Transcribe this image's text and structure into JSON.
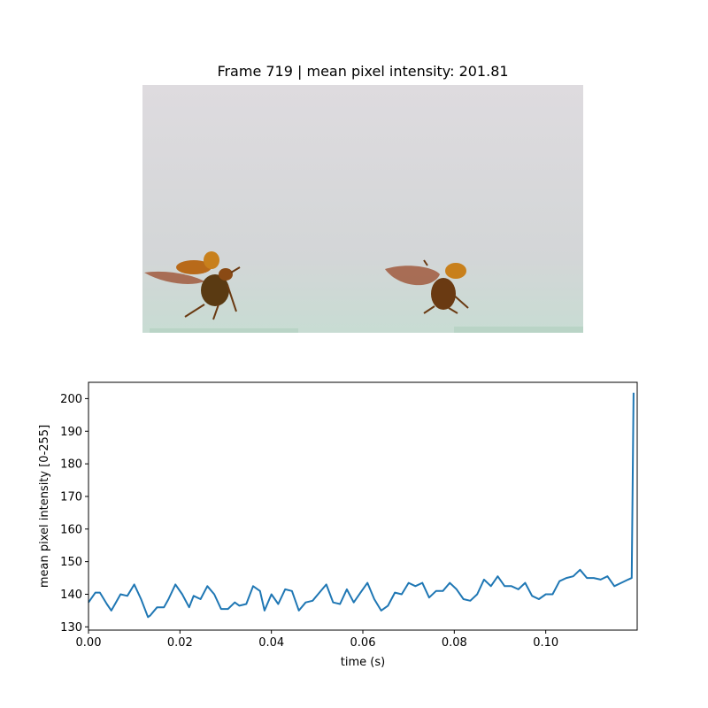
{
  "frame": {
    "title": "Frame 719 | mean pixel intensity: 201.81",
    "background_top": "#dcd8dc",
    "background_bottom": "#c9dcd4",
    "beetle_color": "#b05a10",
    "wing_color": "#8a3818"
  },
  "chart_data": {
    "type": "line",
    "xlabel": "time (s)",
    "ylabel": "mean pixel intensity [0-255]",
    "xlim": [
      0.0,
      0.12
    ],
    "ylim": [
      129,
      205
    ],
    "xticks": [
      0.0,
      0.02,
      0.04,
      0.06,
      0.08,
      0.1
    ],
    "xtick_labels": [
      "0.00",
      "0.02",
      "0.04",
      "0.06",
      "0.08",
      "0.10"
    ],
    "yticks": [
      130,
      140,
      150,
      160,
      170,
      180,
      190,
      200
    ],
    "ytick_labels": [
      "130",
      "140",
      "150",
      "160",
      "170",
      "180",
      "190",
      "200"
    ],
    "grid": false,
    "line_color": "#1f77b4",
    "series": [
      {
        "x": [
          0.0,
          0.0015,
          0.0025,
          0.004,
          0.005,
          0.006,
          0.007,
          0.0085,
          0.01,
          0.0115,
          0.013,
          0.0135,
          0.015,
          0.0165,
          0.0175,
          0.019,
          0.0205,
          0.022,
          0.023,
          0.0245,
          0.026,
          0.0275,
          0.029,
          0.0305,
          0.032,
          0.033,
          0.0345,
          0.036,
          0.0375,
          0.0385,
          0.04,
          0.0415,
          0.043,
          0.0445,
          0.046,
          0.0475,
          0.049,
          0.0505,
          0.052,
          0.0535,
          0.055,
          0.0565,
          0.058,
          0.0595,
          0.061,
          0.0625,
          0.064,
          0.0655,
          0.067,
          0.0685,
          0.07,
          0.0715,
          0.073,
          0.0745,
          0.076,
          0.0775,
          0.079,
          0.0805,
          0.082,
          0.0835,
          0.085,
          0.0865,
          0.088,
          0.0895,
          0.091,
          0.0925,
          0.094,
          0.0955,
          0.097,
          0.0985,
          0.1,
          0.1015,
          0.103,
          0.1045,
          0.106,
          0.1075,
          0.109,
          0.1105,
          0.112,
          0.1135,
          0.115,
          0.1165,
          0.118,
          0.1188,
          0.1192
        ],
        "y": [
          137.5,
          140.5,
          140.5,
          137.0,
          135.0,
          137.5,
          140.0,
          139.5,
          143.0,
          138.5,
          133.0,
          133.5,
          136.0,
          136.0,
          138.5,
          143.0,
          140.0,
          136.0,
          139.5,
          138.5,
          142.5,
          140.0,
          135.5,
          135.5,
          137.5,
          136.5,
          137.0,
          142.5,
          141.0,
          135.0,
          140.0,
          137.0,
          141.5,
          141.0,
          135.0,
          137.5,
          138.0,
          140.5,
          143.0,
          137.5,
          137.0,
          141.5,
          137.5,
          140.5,
          143.5,
          138.5,
          135.0,
          136.5,
          140.5,
          140.0,
          143.5,
          142.5,
          143.5,
          139.0,
          141.0,
          141.0,
          143.5,
          141.5,
          138.5,
          138.0,
          140.0,
          144.5,
          142.5,
          145.5,
          142.5,
          142.5,
          141.5,
          143.5,
          139.5,
          138.5,
          140.0,
          140.0,
          144.0,
          145.0,
          145.5,
          147.5,
          145.0,
          145.0,
          144.5,
          145.5,
          142.5,
          143.5,
          144.5,
          145.0,
          201.8
        ]
      }
    ]
  }
}
